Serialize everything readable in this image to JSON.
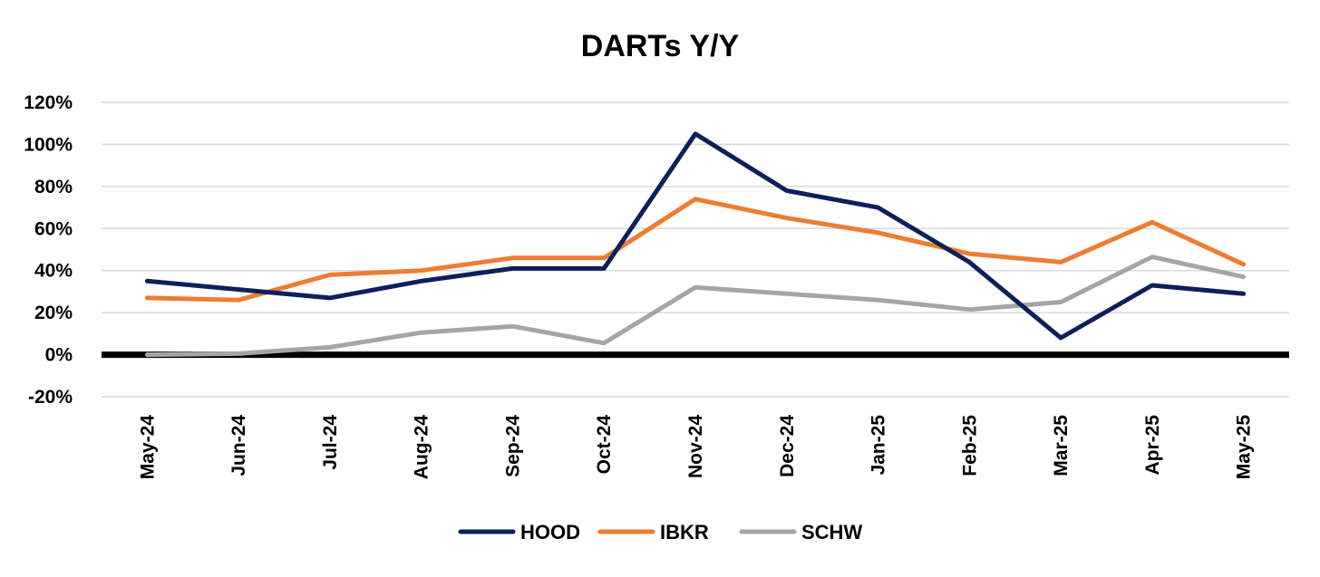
{
  "chart_data": {
    "type": "line",
    "title": "DARTs Y/Y",
    "xlabel": "",
    "ylabel": "",
    "categories": [
      "May-24",
      "Jun-24",
      "Jul-24",
      "Aug-24",
      "Sep-24",
      "Oct-24",
      "Nov-24",
      "Dec-24",
      "Jan-25",
      "Feb-25",
      "Mar-25",
      "Apr-25",
      "May-25"
    ],
    "ylim": [
      -20,
      120
    ],
    "yticks": [
      -20,
      0,
      20,
      40,
      60,
      80,
      100,
      120
    ],
    "ytick_labels": [
      "-20%",
      "0%",
      "20%",
      "40%",
      "60%",
      "80%",
      "100%",
      "120%"
    ],
    "grid": true,
    "legend_position": "bottom",
    "series": [
      {
        "name": "HOOD",
        "color": "#0d1f5c",
        "values": [
          35,
          31,
          27,
          35,
          41,
          41,
          105,
          78,
          70,
          44,
          8,
          33,
          29
        ]
      },
      {
        "name": "IBKR",
        "color": "#ed7d31",
        "values": [
          27,
          26,
          38,
          40,
          46,
          46,
          74,
          65,
          58,
          48,
          44,
          63,
          43
        ]
      },
      {
        "name": "SCHW",
        "color": "#a5a5a5",
        "values": [
          0,
          0.5,
          3.5,
          10.5,
          13.5,
          5.5,
          32,
          29,
          26,
          21.5,
          25,
          46.5,
          37
        ]
      }
    ]
  }
}
